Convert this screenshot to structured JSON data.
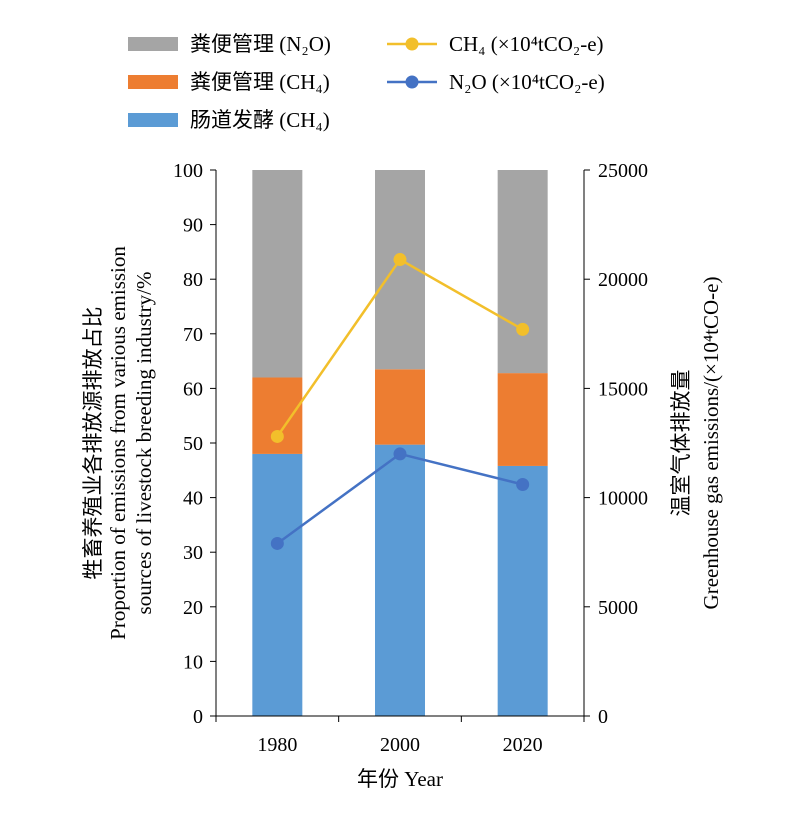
{
  "chart_data": {
    "type": "bar",
    "stacked": true,
    "categories": [
      "1980",
      "2000",
      "2020"
    ],
    "series": [
      {
        "name": "肠道发酵 (CH₄)",
        "kind": "bar",
        "axis": "left",
        "color": "#5b9bd5",
        "values": [
          48,
          49.7,
          45.8
        ]
      },
      {
        "name": "粪便管理 (CH₄)",
        "kind": "bar",
        "axis": "left",
        "color": "#ed7d31",
        "values": [
          14,
          13.8,
          17
        ]
      },
      {
        "name": "粪便管理 (N₂O)",
        "kind": "bar",
        "axis": "left",
        "color": "#a5a5a5",
        "values": [
          38,
          36.5,
          37.2
        ]
      },
      {
        "name": "CH₄ (×10⁴tCO₂-e)",
        "kind": "line",
        "axis": "right",
        "color": "#f2bf2b",
        "values": [
          12800,
          20900,
          17700
        ]
      },
      {
        "name": "N₂O (×10⁴tCO₂-e)",
        "kind": "line",
        "axis": "right",
        "color": "#4472c4",
        "values": [
          7900,
          12000,
          10600
        ]
      }
    ],
    "xlabel": "年份 Year",
    "ylabel": [
      "牲畜养殖业各排放源排放占比",
      "Proportion of emissions from various emission",
      "sources of livestock breeding industry/%"
    ],
    "y2label": [
      "温室气体排放量",
      "Greenhouse gas emissions/(×10⁴tCO-e)"
    ],
    "ylim": [
      0,
      100
    ],
    "y2lim": [
      0,
      25000
    ],
    "yticks": [
      "0",
      "10",
      "20",
      "30",
      "40",
      "50",
      "60",
      "70",
      "80",
      "90",
      "100"
    ],
    "y2ticks": [
      "0",
      "5000",
      "10000",
      "15000",
      "20000",
      "25000"
    ],
    "grid": false,
    "legend_position": "top"
  }
}
